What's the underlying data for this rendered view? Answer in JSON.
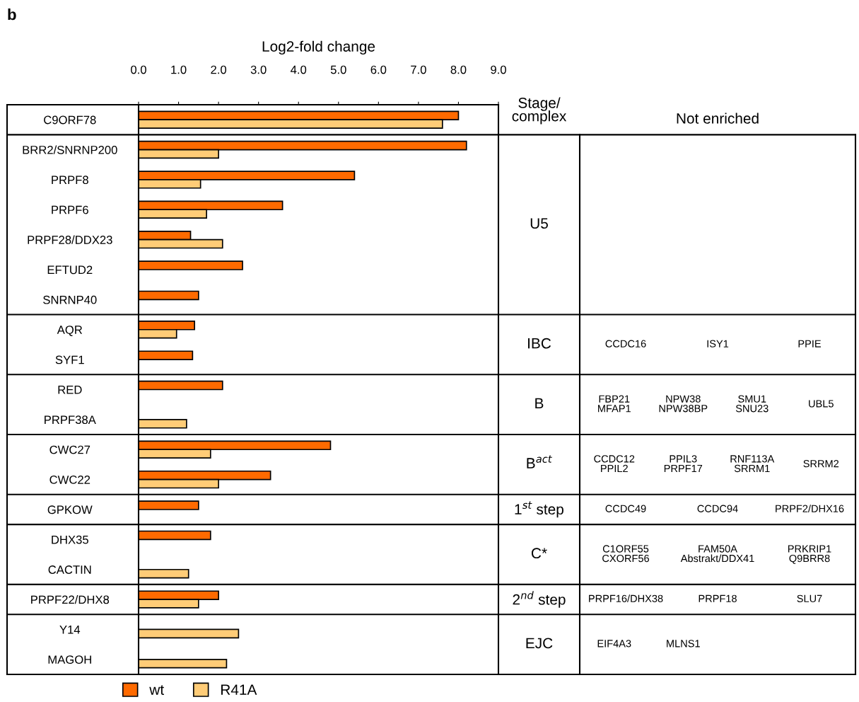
{
  "chart_data": {
    "type": "bar",
    "orientation": "horizontal",
    "title": "b",
    "xlabel": "Log2-fold change",
    "categories": [
      "C9ORF78",
      "BRR2/SNRNP200",
      "PRPF8",
      "PRPF6",
      "PRPF28/DDX23",
      "EFTUD2",
      "SNRNP40",
      "AQR",
      "SYF1",
      "RED",
      "PRPF38A",
      "CWC27",
      "CWC22",
      "GPKOW",
      "DHX35",
      "CACTIN",
      "PRPF22/DHX8",
      "Y14",
      "MAGOH"
    ],
    "series": [
      {
        "name": "wt",
        "color": "#ff6a00",
        "values": [
          8.0,
          8.2,
          5.4,
          3.6,
          1.3,
          2.6,
          1.5,
          1.4,
          1.35,
          2.1,
          null,
          4.8,
          3.3,
          1.5,
          1.8,
          null,
          2.0,
          null,
          null
        ]
      },
      {
        "name": "R41A",
        "color": "#ffcc77",
        "values": [
          7.6,
          2.0,
          1.55,
          1.7,
          2.1,
          null,
          null,
          0.95,
          null,
          null,
          1.2,
          1.8,
          2.0,
          null,
          null,
          1.25,
          1.5,
          2.5,
          2.2
        ]
      }
    ],
    "xlim": [
      0,
      9
    ],
    "xticks": [
      {
        "value": 0,
        "label": "0.0"
      },
      {
        "value": 1,
        "label": "1.0"
      },
      {
        "value": 2,
        "label": "2.0"
      },
      {
        "value": 3,
        "label": "3.0"
      },
      {
        "value": 4,
        "label": "4.0"
      },
      {
        "value": 5,
        "label": "5.0"
      },
      {
        "value": 6,
        "label": "6.0"
      },
      {
        "value": 7,
        "label": "7.0"
      },
      {
        "value": 8,
        "label": "8.0"
      },
      {
        "value": 9,
        "label": "9.0"
      }
    ],
    "grid": false,
    "legend": "bottom",
    "annotations": [
      "Stage/\ncomplex",
      "Not enriched",
      "U5",
      "IBC",
      "CCDC16",
      "ISY1",
      "PPIE",
      "B",
      "FBP21\nMFAP1",
      "NPW38\nNPW38BP",
      "SMU1\nSNU23",
      "UBL5",
      "B$^{act}$",
      "CCDC12\nPPIL2",
      "PPIL3\nPRPF17",
      "RNF113A\nSRRM1",
      "SRRM2",
      "1$^{st}$ step",
      "CCDC49",
      "CCDC94",
      "PRPF2/DHX16",
      "C*",
      "C1ORF55\nCXORF56",
      "FAM50A\nAbstrakt/DDX41",
      "PRKRIP1\nQ9BRR8",
      "2$^{nd}$ step",
      "PRPF16/DHX38",
      "PRPF18",
      "SLU7",
      "EJC",
      "EIF4A3",
      "MLNS1"
    ]
  }
}
